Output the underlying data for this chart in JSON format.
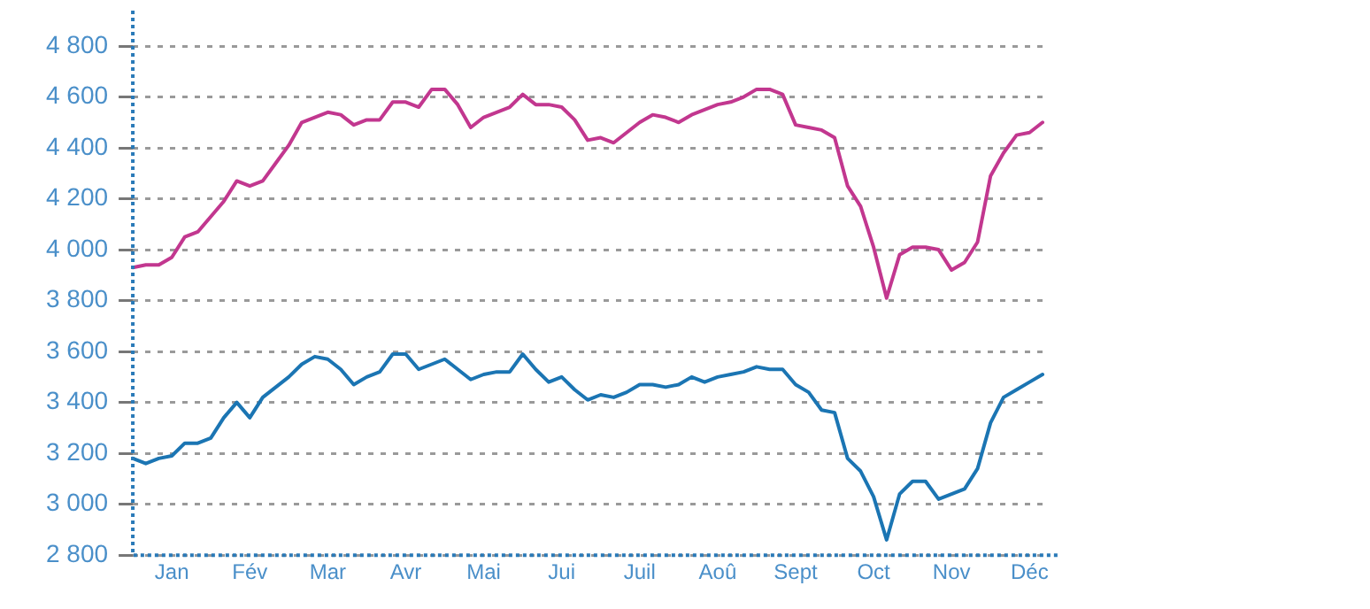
{
  "chart_data": {
    "type": "line",
    "categories": [
      null,
      null,
      null,
      "Jan",
      null,
      null,
      null,
      null,
      null,
      "Fév",
      null,
      null,
      null,
      null,
      null,
      "Mar",
      null,
      null,
      null,
      null,
      null,
      "Avr",
      null,
      null,
      null,
      null,
      null,
      "Mai",
      null,
      null,
      null,
      null,
      null,
      "Jui",
      null,
      null,
      null,
      null,
      null,
      "Juil",
      null,
      null,
      null,
      null,
      null,
      "Aoû",
      null,
      null,
      null,
      null,
      null,
      "Sept",
      null,
      null,
      null,
      null,
      null,
      "Oct",
      null,
      null,
      null,
      null,
      null,
      "Nov",
      null,
      null,
      null,
      null,
      null,
      "Déc",
      null
    ],
    "ylim": [
      2800,
      4800
    ],
    "yticks": [
      {
        "value": 2800,
        "label": "2 800"
      },
      {
        "value": 3000,
        "label": "3 000"
      },
      {
        "value": 3200,
        "label": "3 200"
      },
      {
        "value": 3400,
        "label": "3 400"
      },
      {
        "value": 3600,
        "label": "3 600"
      },
      {
        "value": 3800,
        "label": "3 800"
      },
      {
        "value": 4000,
        "label": "4 000"
      },
      {
        "value": 4200,
        "label": "4 200"
      },
      {
        "value": 4400,
        "label": "4 400"
      },
      {
        "value": 4600,
        "label": "4 600"
      },
      {
        "value": 4800,
        "label": "4 800"
      }
    ],
    "grid": "y",
    "marker": "none",
    "line_style": "solid",
    "legend": false,
    "series": [
      {
        "color": "#c2378f",
        "values": [
          3930,
          3940,
          3940,
          3970,
          4050,
          4070,
          4130,
          4190,
          4270,
          4250,
          4270,
          4340,
          4410,
          4500,
          4520,
          4540,
          4530,
          4490,
          4510,
          4510,
          4580,
          4580,
          4560,
          4630,
          4630,
          4570,
          4480,
          4520,
          4540,
          4560,
          4610,
          4570,
          4570,
          4560,
          4510,
          4430,
          4440,
          4420,
          4460,
          4500,
          4530,
          4520,
          4500,
          4530,
          4550,
          4570,
          4580,
          4600,
          4630,
          4630,
          4610,
          4490,
          4480,
          4470,
          4440,
          4250,
          4170,
          4010,
          3810,
          3980,
          4010,
          4010,
          4000,
          3920,
          3950,
          4030,
          4290,
          4380,
          4450,
          4460,
          4500
        ]
      },
      {
        "color": "#1b75b3",
        "values": [
          3180,
          3160,
          3180,
          3190,
          3240,
          3240,
          3260,
          3340,
          3400,
          3340,
          3420,
          3460,
          3500,
          3550,
          3580,
          3570,
          3530,
          3470,
          3500,
          3520,
          3590,
          3590,
          3530,
          3550,
          3570,
          3530,
          3490,
          3510,
          3520,
          3520,
          3590,
          3530,
          3480,
          3500,
          3450,
          3410,
          3430,
          3420,
          3440,
          3470,
          3470,
          3460,
          3470,
          3500,
          3480,
          3500,
          3510,
          3520,
          3540,
          3530,
          3530,
          3470,
          3440,
          3370,
          3360,
          3180,
          3130,
          3030,
          2860,
          3040,
          3090,
          3090,
          3020,
          3040,
          3060,
          3140,
          3320,
          3420,
          3450,
          3480,
          3510
        ]
      }
    ]
  }
}
